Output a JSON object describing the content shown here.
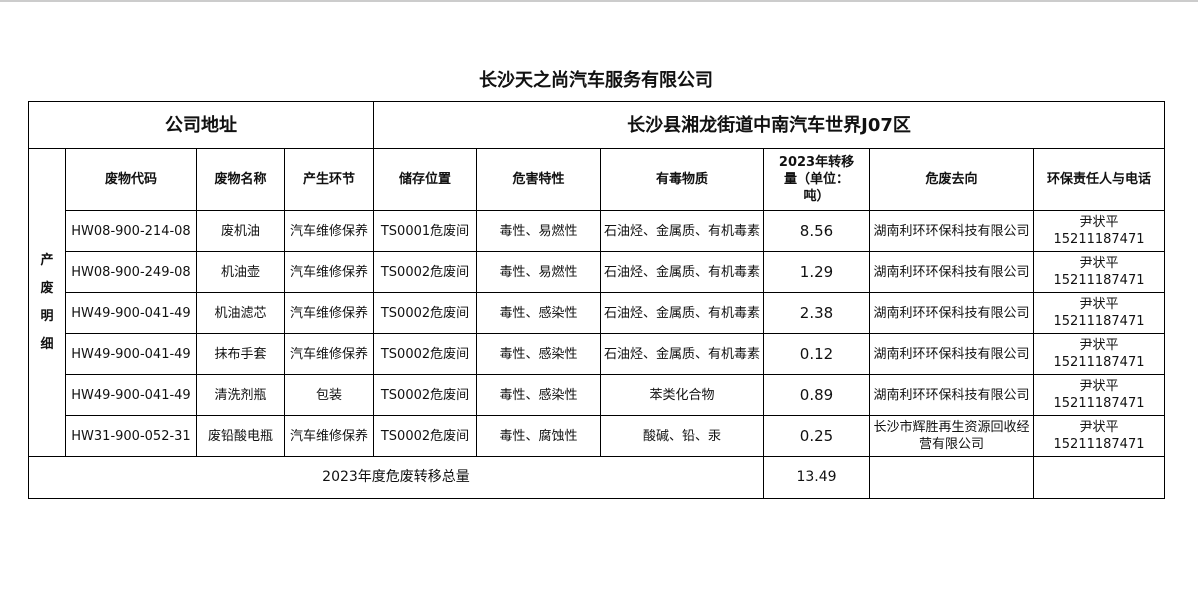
{
  "title": "长沙天之尚汽车服务有限公司",
  "address_label": "公司地址",
  "address_value": "长沙县湘龙街道中南汽车世界J07区",
  "side_label": "产废明细",
  "headers": [
    "废物代码",
    "废物名称",
    "产生环节",
    "储存位置",
    "危害特性",
    "有毒物质",
    "2023年转移量（单位：吨）",
    "危废去向",
    "环保责任人与电话"
  ],
  "rows": [
    {
      "code": "HW08-900-214-08",
      "name": "废机油",
      "stage": "汽车维修保养",
      "storage": "TS0001危废间",
      "hazard": "毒性、易燃性",
      "toxic": "石油烃、金属质、有机毒素",
      "amount": "8.56",
      "dest": "湖南利环环保科技有限公司",
      "person": "尹状平",
      "phone": "15211187471"
    },
    {
      "code": "HW08-900-249-08",
      "name": "机油壶",
      "stage": "汽车维修保养",
      "storage": "TS0002危废间",
      "hazard": "毒性、易燃性",
      "toxic": "石油烃、金属质、有机毒素",
      "amount": "1.29",
      "dest": "湖南利环环保科技有限公司",
      "person": "尹状平",
      "phone": "15211187471"
    },
    {
      "code": "HW49-900-041-49",
      "name": "机油滤芯",
      "stage": "汽车维修保养",
      "storage": "TS0002危废间",
      "hazard": "毒性、感染性",
      "toxic": "石油烃、金属质、有机毒素",
      "amount": "2.38",
      "dest": "湖南利环环保科技有限公司",
      "person": "尹状平",
      "phone": "15211187471"
    },
    {
      "code": "HW49-900-041-49",
      "name": "抹布手套",
      "stage": "汽车维修保养",
      "storage": "TS0002危废间",
      "hazard": "毒性、感染性",
      "toxic": "石油烃、金属质、有机毒素",
      "amount": "0.12",
      "dest": "湖南利环环保科技有限公司",
      "person": "尹状平",
      "phone": "15211187471"
    },
    {
      "code": "HW49-900-041-49",
      "name": "清洗剂瓶",
      "stage": "包装",
      "storage": "TS0002危废间",
      "hazard": "毒性、感染性",
      "toxic": "苯类化合物",
      "amount": "0.89",
      "dest": "湖南利环环保科技有限公司",
      "person": "尹状平",
      "phone": "15211187471"
    },
    {
      "code": "HW31-900-052-31",
      "name": "废铅酸电瓶",
      "stage": "汽车维修保养",
      "storage": "TS0002危废间",
      "hazard": "毒性、腐蚀性",
      "toxic": "酸碱、铅、汞",
      "amount": "0.25",
      "dest": "长沙市辉胜再生资源回收经营有限公司",
      "person": "尹状平",
      "phone": "15211187471"
    }
  ],
  "total_label": "2023年度危废转移总量",
  "total_value": "13.49"
}
